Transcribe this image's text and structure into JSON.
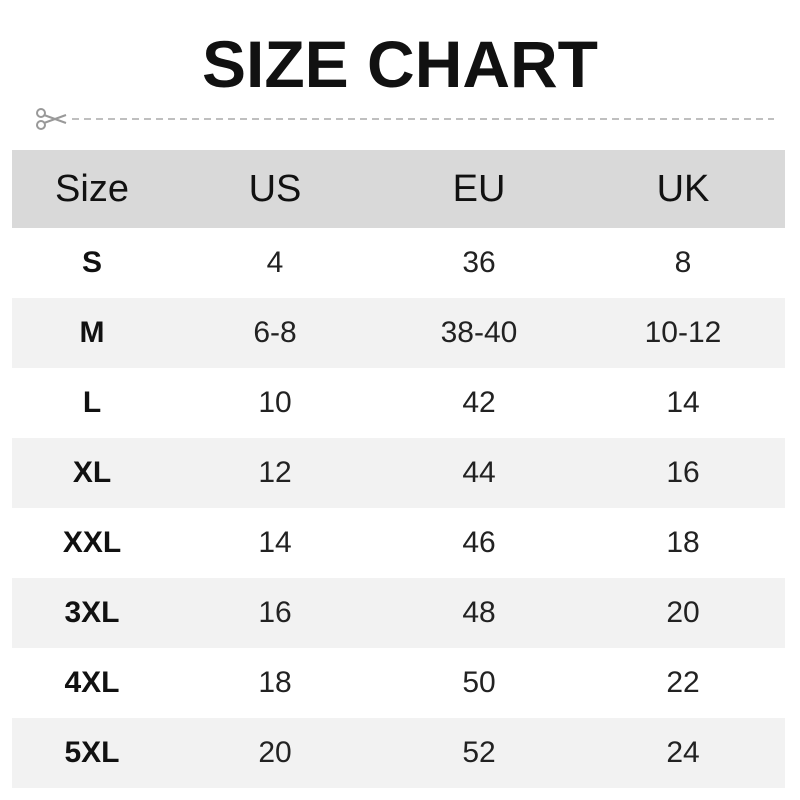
{
  "title": "SIZE CHART",
  "headers": [
    "Size",
    "US",
    "EU",
    "UK"
  ],
  "rows": [
    [
      "S",
      "4",
      "36",
      "8"
    ],
    [
      "M",
      "6-8",
      "38-40",
      "10-12"
    ],
    [
      "L",
      "10",
      "42",
      "14"
    ],
    [
      "XL",
      "12",
      "44",
      "16"
    ],
    [
      "XXL",
      "14",
      "46",
      "18"
    ],
    [
      "3XL",
      "16",
      "48",
      "20"
    ],
    [
      "4XL",
      "18",
      "50",
      "22"
    ],
    [
      "5XL",
      "20",
      "52",
      "24"
    ]
  ],
  "colors": {
    "header_bg": "#d9d9d9",
    "alt_row_bg": "#f2f2f2"
  },
  "icons": [
    "scissors-icon"
  ]
}
